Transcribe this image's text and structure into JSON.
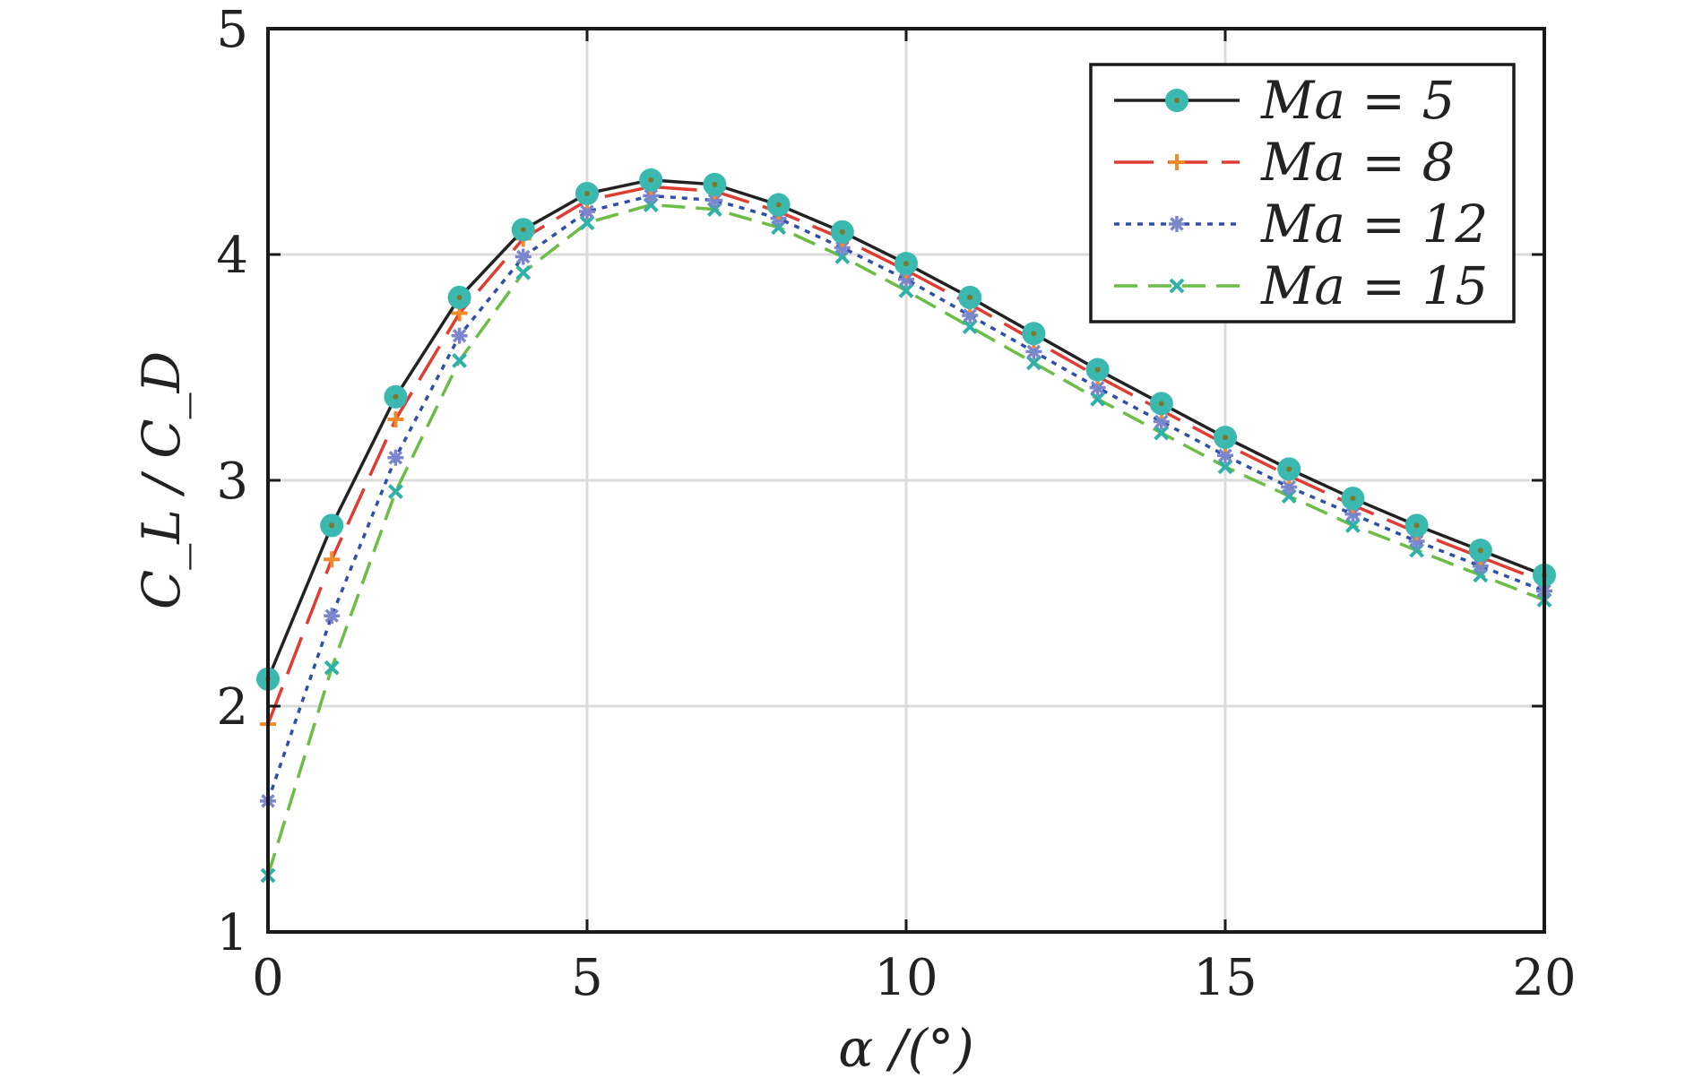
{
  "chart_data": {
    "type": "line",
    "xlabel": "α /(°)",
    "ylabel": "C_L / C_D",
    "xlim": [
      0,
      20
    ],
    "ylim": [
      1,
      5
    ],
    "xticks": [
      0,
      5,
      10,
      15,
      20
    ],
    "yticks": [
      1,
      2,
      3,
      4,
      5
    ],
    "grid": true,
    "legend_position": "top-right",
    "x": [
      0,
      1,
      2,
      3,
      4,
      5,
      6,
      7,
      8,
      9,
      10,
      11,
      12,
      13,
      14,
      15,
      16,
      17,
      18,
      19,
      20
    ],
    "series": [
      {
        "name": "Ma = 5",
        "color": "#222222",
        "marker_color": "#3bb8b0",
        "dash": "",
        "marker": "circle",
        "values": [
          2.12,
          2.8,
          3.37,
          3.81,
          4.11,
          4.27,
          4.33,
          4.31,
          4.22,
          4.1,
          3.96,
          3.81,
          3.65,
          3.49,
          3.34,
          3.19,
          3.05,
          2.92,
          2.8,
          2.69,
          2.58
        ]
      },
      {
        "name": "Ma = 8",
        "color": "#e03c31",
        "marker_color": "#f08a2a",
        "dash": "44,16",
        "marker": "plus",
        "values": [
          1.92,
          2.65,
          3.27,
          3.74,
          4.07,
          4.24,
          4.3,
          4.28,
          4.19,
          4.07,
          3.93,
          3.78,
          3.62,
          3.46,
          3.31,
          3.16,
          3.02,
          2.89,
          2.77,
          2.66,
          2.55
        ]
      },
      {
        "name": "Ma = 12",
        "color": "#2f4fa8",
        "marker_color": "#7b86cc",
        "dash": "6,7",
        "marker": "asterisk",
        "values": [
          1.58,
          2.4,
          3.1,
          3.64,
          3.99,
          4.19,
          4.26,
          4.24,
          4.16,
          4.03,
          3.89,
          3.73,
          3.57,
          3.41,
          3.26,
          3.11,
          2.97,
          2.85,
          2.73,
          2.62,
          2.51
        ]
      },
      {
        "name": "Ma = 15",
        "color": "#6cbd45",
        "marker_color": "#2fb0a8",
        "dash": "26,12",
        "marker": "cross",
        "values": [
          1.25,
          2.17,
          2.95,
          3.53,
          3.92,
          4.14,
          4.22,
          4.2,
          4.12,
          3.99,
          3.84,
          3.68,
          3.52,
          3.36,
          3.21,
          3.06,
          2.93,
          2.8,
          2.69,
          2.58,
          2.47
        ]
      }
    ]
  }
}
